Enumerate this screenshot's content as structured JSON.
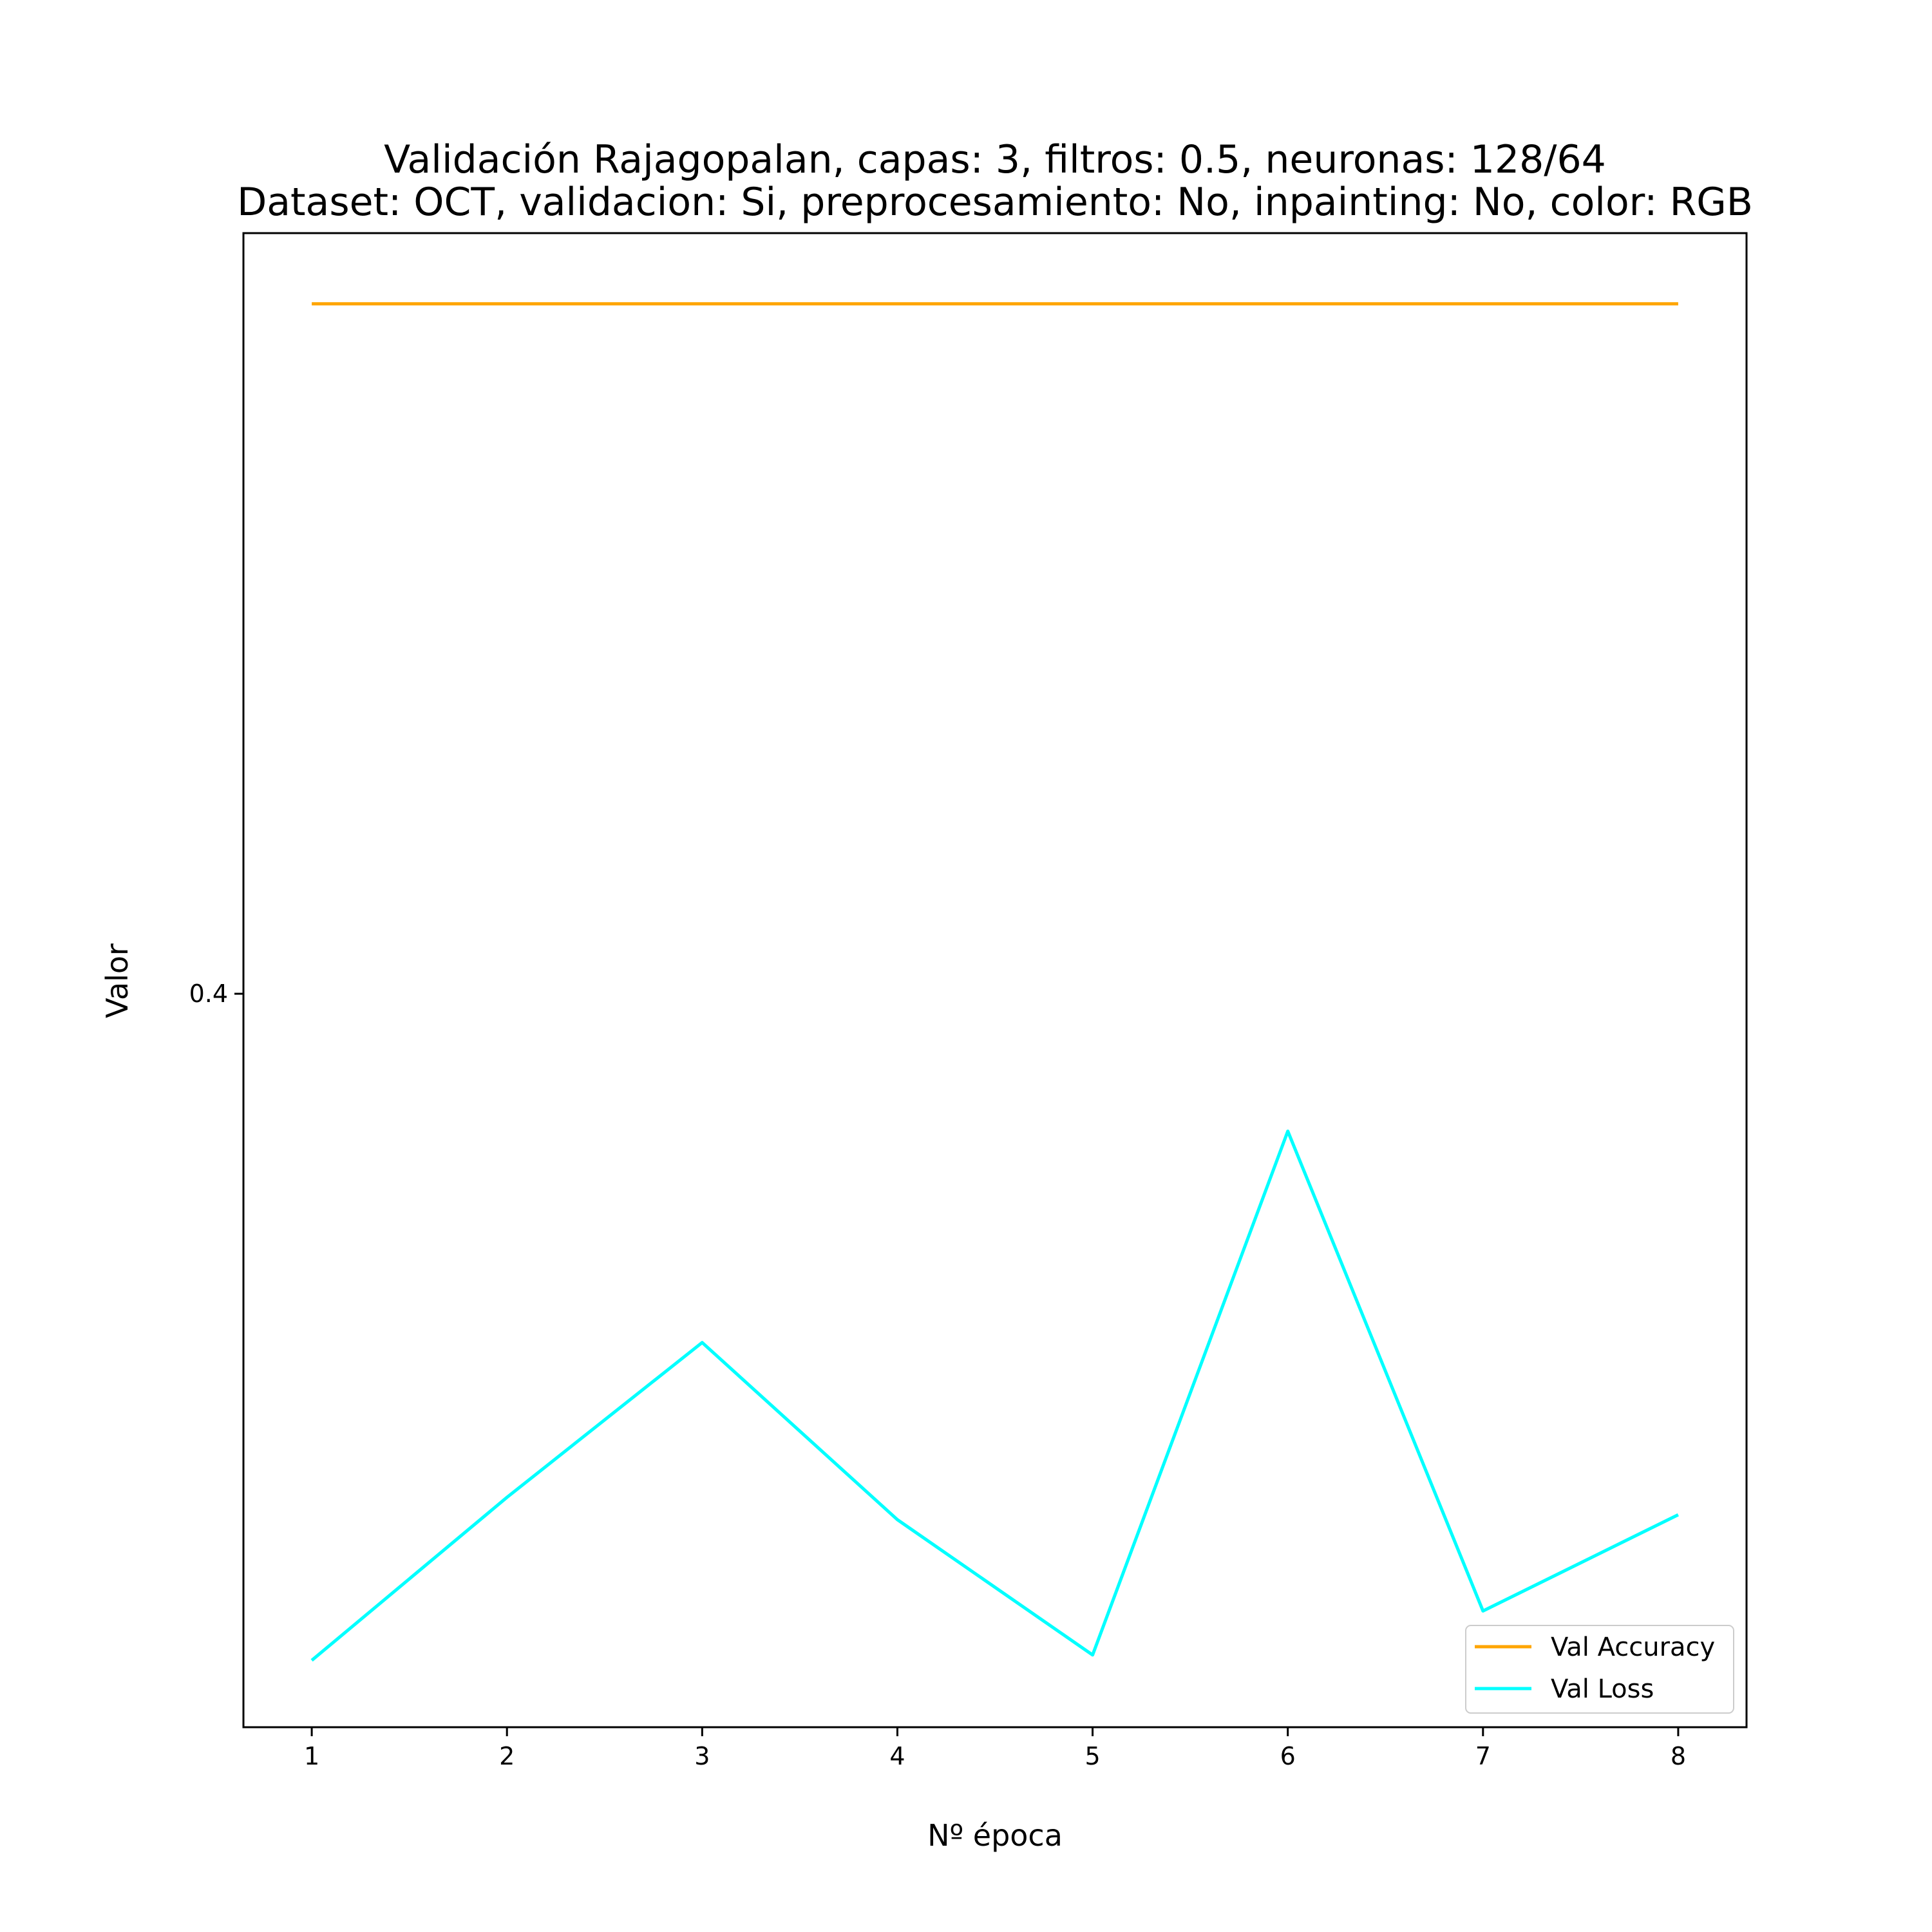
{
  "chart_data": {
    "type": "line",
    "title": "Validación Rajagopalan, capas: 3, filtros: 0.5, neuronas: 128/64",
    "subtitle": "Dataset: OCT, validacion: Si, preprocesamiento: No, inpainting: No, color: RGB",
    "xlabel": "Nº época",
    "ylabel": "Valor",
    "x": [
      1,
      2,
      3,
      4,
      5,
      6,
      7,
      8
    ],
    "x_ticks": [
      "1",
      "2",
      "3",
      "4",
      "5",
      "6",
      "7",
      "8"
    ],
    "y_ticks": [
      {
        "value": 0.4,
        "label": "0.4"
      }
    ],
    "xlim": [
      0.65,
      8.35
    ],
    "ylim": [
      0.265,
      0.54
    ],
    "grid": false,
    "legend_position": "lower-right",
    "series": [
      {
        "name": "Val Accuracy",
        "color": "#FFA500",
        "values": [
          0.527,
          0.527,
          0.527,
          0.527,
          0.527,
          0.527,
          0.527,
          0.527
        ]
      },
      {
        "name": "Val Loss",
        "color": "#00FFFF",
        "values": [
          0.2773,
          0.3073,
          0.3358,
          0.3032,
          0.2783,
          0.3747,
          0.2864,
          0.3041
        ]
      }
    ]
  }
}
